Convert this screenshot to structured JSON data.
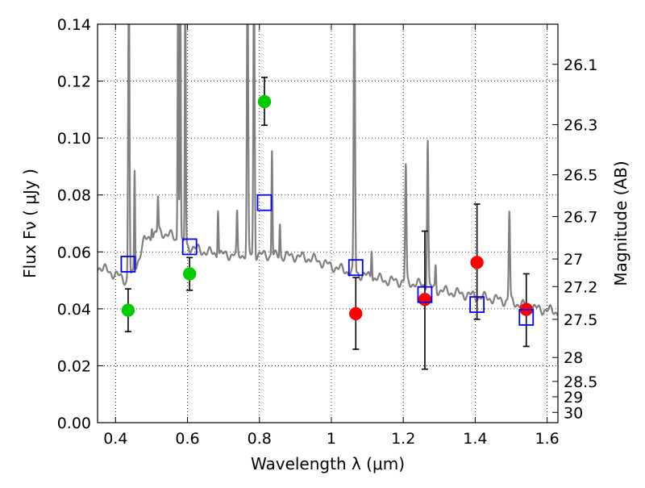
{
  "chart_data": {
    "type": "scatter",
    "xlabel": "Wavelength  λ (μm)",
    "ylabel": "Flux  Fν  ( μJy )",
    "y2label": "Magnitude (AB)",
    "xlim": [
      0.35,
      1.63
    ],
    "ylim": [
      0.0,
      0.14
    ],
    "grid": true,
    "x_ticks": [
      {
        "value": 0.4,
        "label": "0.4"
      },
      {
        "value": 0.6,
        "label": "0.6"
      },
      {
        "value": 0.8,
        "label": "0.8"
      },
      {
        "value": 1.0,
        "label": "1"
      },
      {
        "value": 1.2,
        "label": "1.2"
      },
      {
        "value": 1.4,
        "label": "1.4"
      },
      {
        "value": 1.6,
        "label": "1.6"
      }
    ],
    "y_ticks": [
      {
        "value": 0.0,
        "label": "0.00"
      },
      {
        "value": 0.02,
        "label": "0.02"
      },
      {
        "value": 0.04,
        "label": "0.04"
      },
      {
        "value": 0.06,
        "label": "0.06"
      },
      {
        "value": 0.08,
        "label": "0.08"
      },
      {
        "value": 0.1,
        "label": "0.10"
      },
      {
        "value": 0.12,
        "label": "0.12"
      },
      {
        "value": 0.14,
        "label": "0.14"
      }
    ],
    "y2_ticks": [
      {
        "flux": 0.1259,
        "label": "26.1"
      },
      {
        "flux": 0.1047,
        "label": "26.3"
      },
      {
        "flux": 0.0871,
        "label": "26.5"
      },
      {
        "flux": 0.0724,
        "label": "26.7"
      },
      {
        "flux": 0.0575,
        "label": "27"
      },
      {
        "flux": 0.0478,
        "label": "27.2"
      },
      {
        "flux": 0.0363,
        "label": "27.5"
      },
      {
        "flux": 0.0229,
        "label": "28"
      },
      {
        "flux": 0.0145,
        "label": "28.5"
      },
      {
        "flux": 0.0091,
        "label": "29"
      },
      {
        "flux": 0.0036,
        "label": "30"
      }
    ],
    "series": [
      {
        "marker": "circle",
        "color": "#00cc00",
        "points": [
          {
            "x": 0.435,
            "y": 0.0395,
            "ylo": 0.032,
            "yhi": 0.047
          },
          {
            "x": 0.606,
            "y": 0.0523,
            "ylo": 0.0465,
            "yhi": 0.058
          },
          {
            "x": 0.814,
            "y": 0.1128,
            "ylo": 0.1045,
            "yhi": 0.1213
          }
        ]
      },
      {
        "marker": "circle",
        "color": "#ff0000",
        "points": [
          {
            "x": 1.068,
            "y": 0.0383,
            "ylo": 0.0258,
            "yhi": 0.051
          },
          {
            "x": 1.26,
            "y": 0.0433,
            "ylo": 0.0188,
            "yhi": 0.0673
          },
          {
            "x": 1.405,
            "y": 0.0563,
            "ylo": 0.0363,
            "yhi": 0.0768
          },
          {
            "x": 1.542,
            "y": 0.0398,
            "ylo": 0.0268,
            "yhi": 0.0523
          }
        ]
      },
      {
        "marker": "open-square",
        "color": "#0000ff",
        "points": [
          {
            "x": 0.435,
            "y": 0.0557
          },
          {
            "x": 0.606,
            "y": 0.0618
          },
          {
            "x": 0.814,
            "y": 0.0773
          },
          {
            "x": 1.068,
            "y": 0.0545
          },
          {
            "x": 1.26,
            "y": 0.045
          },
          {
            "x": 1.405,
            "y": 0.0415
          },
          {
            "x": 1.542,
            "y": 0.037
          }
        ]
      }
    ],
    "model_spectrum": {
      "color": "#808080",
      "continuum": [
        [
          0.35,
          0.055
        ],
        [
          0.4,
          0.052
        ],
        [
          0.43,
          0.05
        ],
        [
          0.45,
          0.052
        ],
        [
          0.48,
          0.064
        ],
        [
          0.52,
          0.067
        ],
        [
          0.55,
          0.066
        ],
        [
          0.6,
          0.062
        ],
        [
          0.65,
          0.06
        ],
        [
          0.7,
          0.059
        ],
        [
          0.75,
          0.059
        ],
        [
          0.8,
          0.059
        ],
        [
          0.85,
          0.0585
        ],
        [
          0.9,
          0.0585
        ],
        [
          0.95,
          0.0575
        ],
        [
          1.0,
          0.055
        ],
        [
          1.05,
          0.053
        ],
        [
          1.1,
          0.0515
        ],
        [
          1.15,
          0.05
        ],
        [
          1.2,
          0.0495
        ],
        [
          1.25,
          0.0485
        ],
        [
          1.3,
          0.0465
        ],
        [
          1.35,
          0.0455
        ],
        [
          1.4,
          0.0445
        ],
        [
          1.45,
          0.0435
        ],
        [
          1.5,
          0.0425
        ],
        [
          1.55,
          0.0405
        ],
        [
          1.6,
          0.0395
        ],
        [
          1.63,
          0.039
        ]
      ],
      "lines": [
        {
          "x": 0.437,
          "peak": 0.16,
          "w": 0.004
        },
        {
          "x": 0.453,
          "peak": 0.089,
          "w": 0.003
        },
        {
          "x": 0.501,
          "peak": 0.07,
          "w": 0.003
        },
        {
          "x": 0.518,
          "peak": 0.079,
          "w": 0.003
        },
        {
          "x": 0.574,
          "peak": 0.16,
          "w": 0.003
        },
        {
          "x": 0.58,
          "peak": 0.16,
          "w": 0.003
        },
        {
          "x": 0.594,
          "peak": 0.16,
          "w": 0.003
        },
        {
          "x": 0.685,
          "peak": 0.076,
          "w": 0.003
        },
        {
          "x": 0.738,
          "peak": 0.073,
          "w": 0.003
        },
        {
          "x": 0.767,
          "peak": 0.16,
          "w": 0.004
        },
        {
          "x": 0.785,
          "peak": 0.16,
          "w": 0.004
        },
        {
          "x": 0.835,
          "peak": 0.096,
          "w": 0.003
        },
        {
          "x": 0.857,
          "peak": 0.07,
          "w": 0.003
        },
        {
          "x": 1.064,
          "peak": 0.16,
          "w": 0.004
        },
        {
          "x": 1.112,
          "peak": 0.062,
          "w": 0.003
        },
        {
          "x": 1.207,
          "peak": 0.09,
          "w": 0.004
        },
        {
          "x": 1.268,
          "peak": 0.1,
          "w": 0.004
        },
        {
          "x": 1.29,
          "peak": 0.055,
          "w": 0.003
        },
        {
          "x": 1.495,
          "peak": 0.074,
          "w": 0.004
        }
      ]
    }
  }
}
